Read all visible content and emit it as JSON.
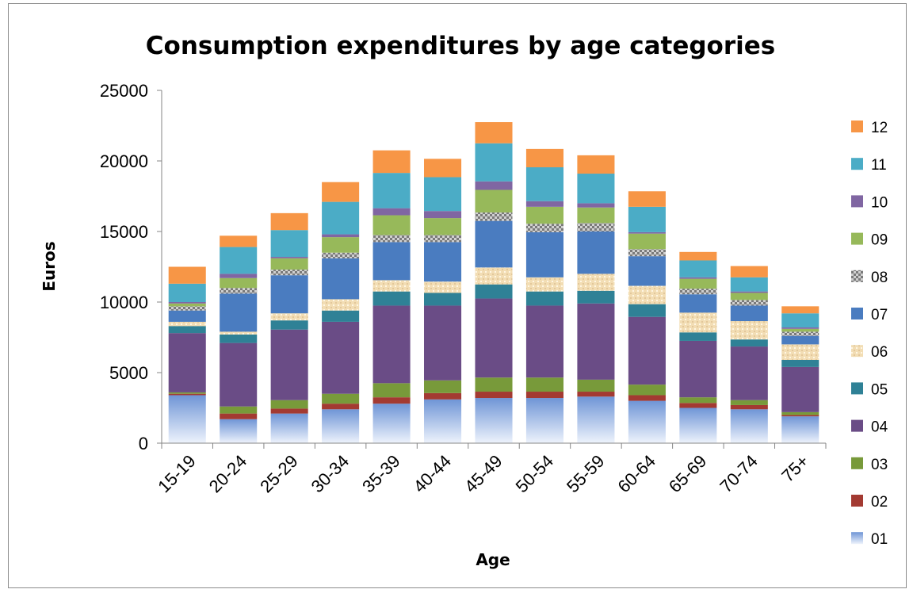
{
  "chart_data": {
    "type": "bar",
    "stacked": true,
    "title": "Consumption expenditures by age categories",
    "xlabel": "Age",
    "ylabel": "Euros",
    "ylim": [
      0,
      25000
    ],
    "yticks": [
      0,
      5000,
      10000,
      15000,
      20000,
      25000
    ],
    "grid": false,
    "legend_position": "right",
    "categories": [
      "15-19",
      "20-24",
      "25-29",
      "30-34",
      "35-39",
      "40-44",
      "45-49",
      "50-54",
      "55-59",
      "60-64",
      "65-69",
      "70-74",
      "75+"
    ],
    "series": [
      {
        "name": "01",
        "color": "#6f95d6",
        "values": [
          3400,
          1700,
          2100,
          2400,
          2800,
          3100,
          3200,
          3200,
          3300,
          3000,
          2500,
          2400,
          1900
        ]
      },
      {
        "name": "02",
        "color": "#a33a32",
        "values": [
          100,
          400,
          350,
          400,
          450,
          450,
          450,
          450,
          350,
          400,
          350,
          300,
          100
        ]
      },
      {
        "name": "03",
        "color": "#789a3a",
        "values": [
          100,
          500,
          600,
          700,
          1000,
          900,
          1000,
          1000,
          850,
          750,
          400,
          350,
          200
        ]
      },
      {
        "name": "04",
        "color": "#6a4c86",
        "values": [
          4200,
          4500,
          5000,
          5100,
          5500,
          5300,
          5600,
          5100,
          5400,
          4800,
          4000,
          3800,
          3200
        ]
      },
      {
        "name": "05",
        "color": "#2f8196",
        "values": [
          500,
          600,
          650,
          800,
          1000,
          900,
          1000,
          1000,
          900,
          900,
          600,
          500,
          500
        ]
      },
      {
        "name": "06",
        "color": "#f2ddb4",
        "values": [
          300,
          200,
          500,
          800,
          800,
          800,
          1200,
          1000,
          1200,
          1300,
          1400,
          1300,
          1100
        ]
      },
      {
        "name": "07",
        "color": "#4a7cc0",
        "values": [
          800,
          2700,
          2700,
          2900,
          2700,
          2800,
          3300,
          3200,
          3000,
          2100,
          1300,
          1100,
          600
        ]
      },
      {
        "name": "08",
        "color": "#c4c4c4",
        "values": [
          300,
          400,
          400,
          400,
          500,
          500,
          600,
          600,
          600,
          500,
          400,
          400,
          300
        ]
      },
      {
        "name": "09",
        "color": "#97b95a",
        "values": [
          200,
          700,
          800,
          1100,
          1400,
          1200,
          1600,
          1200,
          1100,
          1100,
          700,
          500,
          200
        ]
      },
      {
        "name": "10",
        "color": "#8066a2",
        "values": [
          100,
          300,
          100,
          200,
          500,
          500,
          600,
          400,
          300,
          100,
          100,
          100,
          100
        ]
      },
      {
        "name": "11",
        "color": "#4bacc6",
        "values": [
          1300,
          1900,
          1900,
          2300,
          2500,
          2400,
          2700,
          2400,
          2100,
          1800,
          1200,
          1000,
          1000
        ]
      },
      {
        "name": "12",
        "color": "#f79646",
        "values": [
          1200,
          800,
          1200,
          1400,
          1600,
          1300,
          1500,
          1300,
          1300,
          1100,
          600,
          800,
          500
        ]
      }
    ]
  }
}
